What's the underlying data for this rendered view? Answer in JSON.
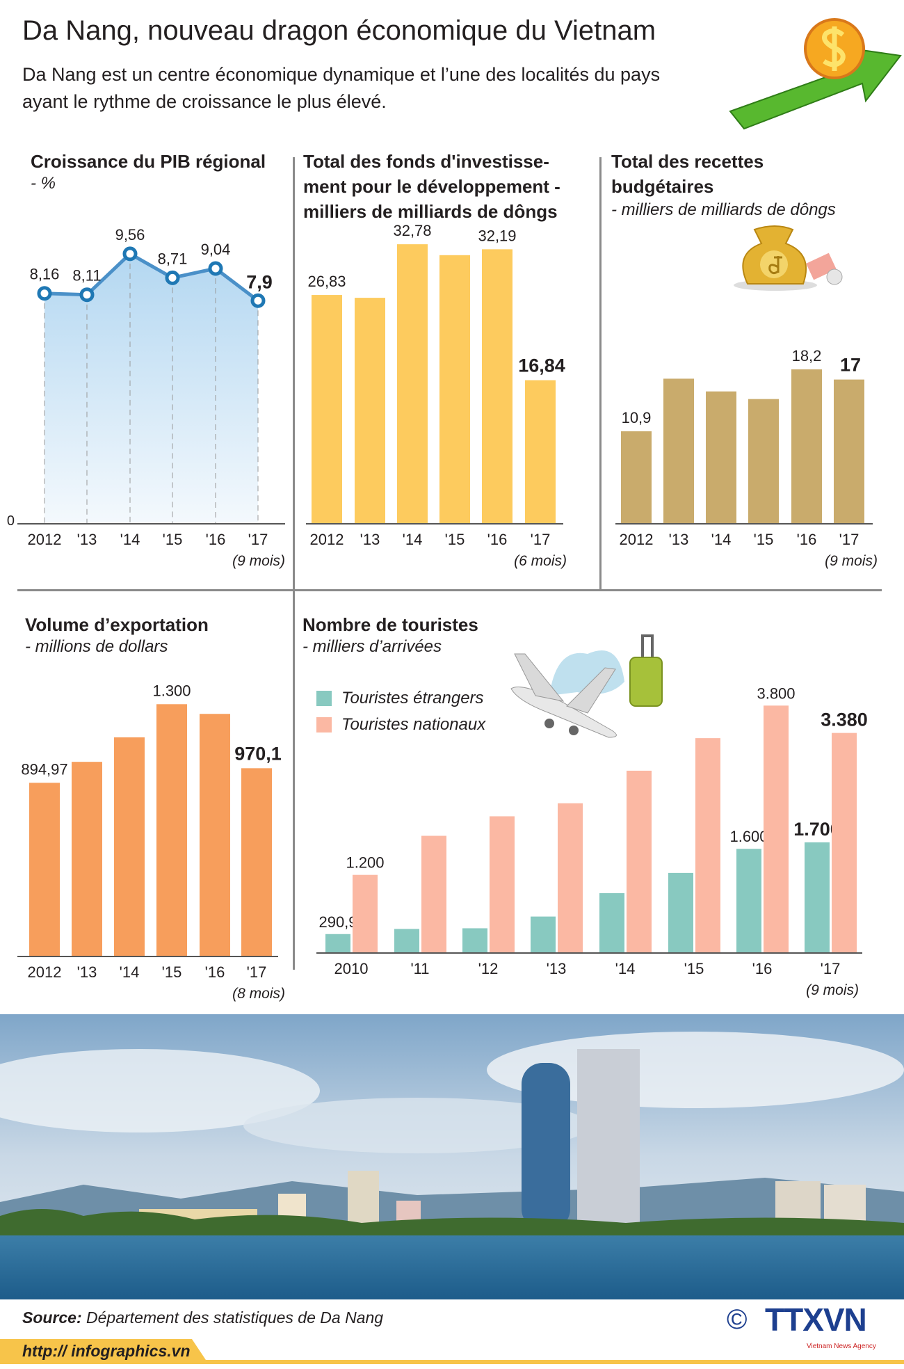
{
  "header": {
    "title": "Da Nang, nouveau dragon économique du Vietnam",
    "subtitle_line1": "Da Nang est un centre économique dynamique et l’une des localités du pays",
    "subtitle_line2": "ayant le rythme de croissance le plus élevé."
  },
  "panels": {
    "gdp": {
      "title": "Croissance du PIB régional",
      "unit": " - %"
    },
    "investment": {
      "title_line1": "Total des fonds d'investisse-",
      "title_line2": "ment pour le développement  -",
      "title_line3": "milliers de milliards de dôngs"
    },
    "budget": {
      "title_line1": "Total des recettes",
      "title_line2": "budgétaires",
      "unit": "- milliers de milliards de dôngs"
    },
    "exports": {
      "title": "Volume d’exportation",
      "unit": "- millions de dollars"
    },
    "tourists": {
      "title": "Nombre de touristes",
      "unit": "- milliers d’arrivées"
    }
  },
  "chart_data": [
    {
      "type": "line",
      "categories": [
        "2012",
        "'13",
        "'14",
        "'15",
        "'16",
        "'17"
      ],
      "values": [
        8.16,
        8.11,
        9.56,
        8.71,
        9.04,
        7.9
      ],
      "labels": [
        "8,16",
        "8,11",
        "9,56",
        "8,71",
        "9,04",
        "7,9"
      ],
      "ytick": "0",
      "note": "(9 mois)",
      "color": "#1f78b4",
      "fill": "#b9dbf2"
    },
    {
      "type": "bar",
      "categories": [
        "2012",
        "'13",
        "'14",
        "'15",
        "'16",
        "'17"
      ],
      "values": [
        26.83,
        26.5,
        32.78,
        31.5,
        32.19,
        16.84
      ],
      "labels": [
        "26,83",
        "",
        "32,78",
        "",
        "32,19",
        "16,84"
      ],
      "note": "(6 mois)",
      "color": "#fdcb5e"
    },
    {
      "type": "bar",
      "categories": [
        "2012",
        "'13",
        "'14",
        "'15",
        "'16",
        "'17"
      ],
      "values": [
        10.9,
        17.1,
        15.6,
        14.7,
        18.2,
        17
      ],
      "labels": [
        "10,9",
        "",
        "",
        "",
        "18,2",
        "17"
      ],
      "note": "(9 mois)",
      "color": "#c9ab6c"
    },
    {
      "type": "bar",
      "categories": [
        "2012",
        "'13",
        "'14",
        "'15",
        "'16",
        "'17"
      ],
      "values": [
        894.97,
        1003,
        1129,
        1300,
        1250,
        970.1
      ],
      "labels": [
        "894,97",
        "",
        "",
        "1.300",
        "",
        "970,1"
      ],
      "note": "(8 mois)",
      "color": "#f79e5c"
    },
    {
      "type": "bar",
      "categories": [
        "2010",
        "'11",
        "'12",
        "'13",
        "'14",
        "'15",
        "'16",
        "'17"
      ],
      "series": [
        {
          "name": "Touristes étrangers",
          "values": [
            290.9,
            370,
            380,
            560,
            920,
            1230,
            1600,
            1700
          ],
          "labels": [
            "290,9",
            "",
            "",
            "",
            "",
            "",
            "1.600",
            "1.700"
          ],
          "color": "#88c9c0"
        },
        {
          "name": "Touristes nationaux",
          "values": [
            1200,
            1800,
            2100,
            2300,
            2800,
            3300,
            3800,
            3380
          ],
          "labels": [
            "1.200",
            "",
            "",
            "",
            "",
            "",
            "3.800",
            "3.380"
          ],
          "color": "#fbb8a3"
        }
      ],
      "note": "(9 mois)"
    }
  ],
  "footer": {
    "source_label": "Source:",
    "source_text": " Département des statistiques de Da Nang",
    "url": "http:// infographics.vn",
    "copyright": "©",
    "logo": "TTXVN",
    "logo_sub": "Vietnam News Agency"
  }
}
